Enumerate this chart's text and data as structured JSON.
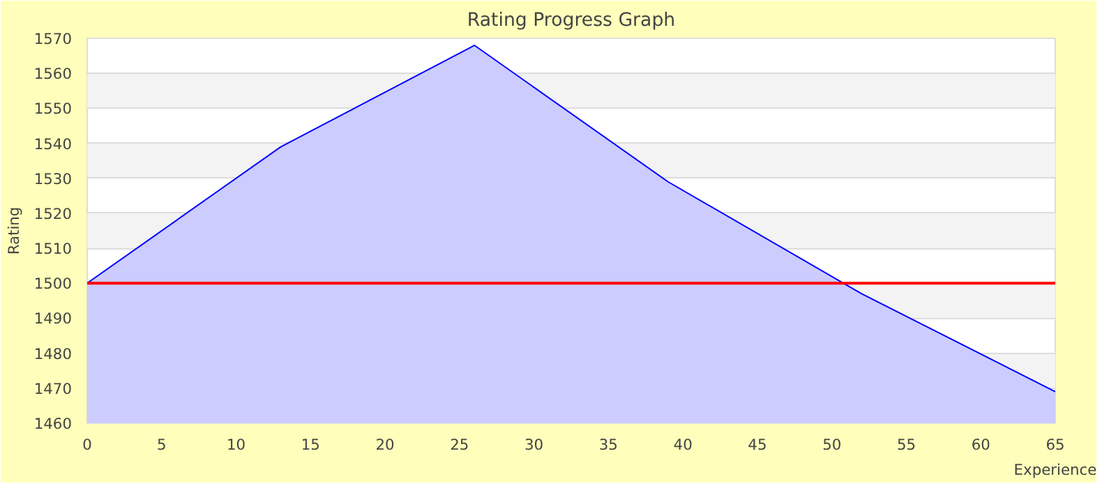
{
  "chart_data": {
    "type": "area",
    "title": "Rating Progress Graph",
    "xlabel": "Experience",
    "ylabel": "Rating",
    "x": [
      0,
      13,
      26,
      39,
      52,
      65
    ],
    "series": [
      {
        "color": "#0000ff",
        "values": [
          1500,
          1539,
          1568,
          1529,
          1497,
          1469
        ]
      }
    ],
    "xlim": [
      0,
      65
    ],
    "xticks": [
      0,
      5,
      10,
      15,
      20,
      25,
      30,
      35,
      40,
      45,
      50,
      55,
      60,
      65
    ],
    "ylim": [
      1460,
      1570
    ],
    "yticks": [
      1460,
      1470,
      1480,
      1490,
      1500,
      1510,
      1520,
      1530,
      1540,
      1550,
      1560,
      1570
    ],
    "grid": "y",
    "ref_lines": [
      {
        "axis": "y",
        "value": 1500,
        "color": "#ff0000"
      }
    ]
  }
}
